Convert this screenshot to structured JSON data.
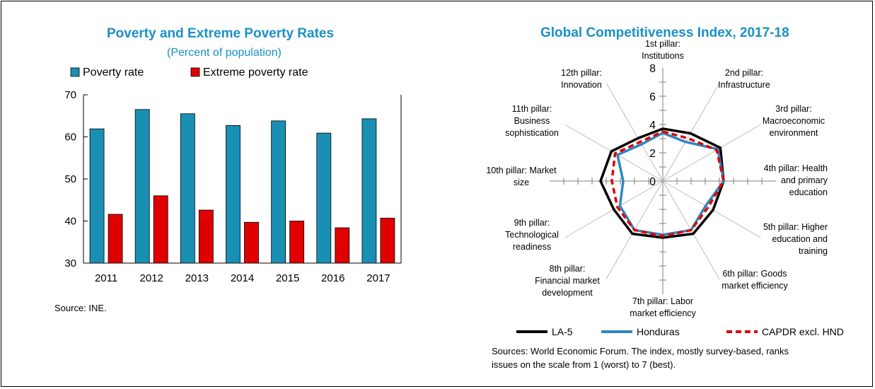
{
  "chart_data": [
    {
      "type": "bar",
      "title": "Poverty and Extreme Poverty Rates",
      "subtitle": "(Percent of population)",
      "categories": [
        "2011",
        "2012",
        "2013",
        "2014",
        "2015",
        "2016",
        "2017"
      ],
      "series": [
        {
          "name": "Poverty rate",
          "color": "#1a8fb4",
          "values": [
            61.9,
            66.5,
            65.5,
            62.7,
            63.8,
            60.9,
            64.3
          ]
        },
        {
          "name": "Extreme poverty rate",
          "color": "#e00000",
          "values": [
            41.6,
            46.0,
            42.6,
            39.7,
            40.0,
            38.4,
            40.7
          ]
        }
      ],
      "ylim": [
        30,
        70
      ],
      "yticks": [
        "30",
        "40",
        "50",
        "60",
        "70"
      ],
      "legend": "top",
      "grid": false,
      "source": "Source: INE."
    },
    {
      "type": "radar",
      "title": "Global Competitiveness Index, 2017-18",
      "axes": [
        [
          "1st pillar:",
          "Institutions"
        ],
        [
          "2nd pillar:",
          "Infrastructure"
        ],
        [
          "3rd pillar:",
          "Macroeconomic",
          "environment"
        ],
        [
          "4th pillar: Health",
          "and primary",
          "education"
        ],
        [
          "5th pillar: Higher",
          "education and",
          "training"
        ],
        [
          "6th pillar: Goods",
          "market efficiency"
        ],
        [
          "7th pillar: Labor",
          "market efficiency"
        ],
        [
          "8th pillar:",
          "Financial market",
          "development"
        ],
        [
          "9th pillar:",
          "Technological",
          "readiness"
        ],
        [
          "10th pillar: Market",
          "size"
        ],
        [
          "11th pillar:",
          "Business",
          "sophistication"
        ],
        [
          "12th pillar:",
          "Innovation"
        ]
      ],
      "rlim": [
        0,
        8
      ],
      "rticks": [
        "0",
        "2",
        "4",
        "6",
        "8"
      ],
      "series": [
        {
          "name": "LA-5",
          "color": "#000000",
          "dash": "solid",
          "values": [
            3.7,
            3.9,
            4.7,
            4.3,
            4.1,
            4.3,
            4.0,
            4.3,
            4.0,
            4.4,
            4.2,
            3.5
          ]
        },
        {
          "name": "Honduras",
          "color": "#2e86c1",
          "dash": "solid",
          "values": [
            3.4,
            3.2,
            4.5,
            4.3,
            3.5,
            4.0,
            3.8,
            4.0,
            3.5,
            2.8,
            3.7,
            3.0
          ]
        },
        {
          "name": "CAPDR excl. HND",
          "color": "#e00000",
          "dash": "dashed",
          "values": [
            3.5,
            3.5,
            4.4,
            4.3,
            3.7,
            4.0,
            3.9,
            4.0,
            3.7,
            3.6,
            3.9,
            3.2
          ]
        }
      ],
      "legend": "bottom",
      "source": "Sources: World Economic Forum. The index, mostly survey-based, ranks issues on the scale from 1 (worst) to 7 (best)."
    }
  ]
}
